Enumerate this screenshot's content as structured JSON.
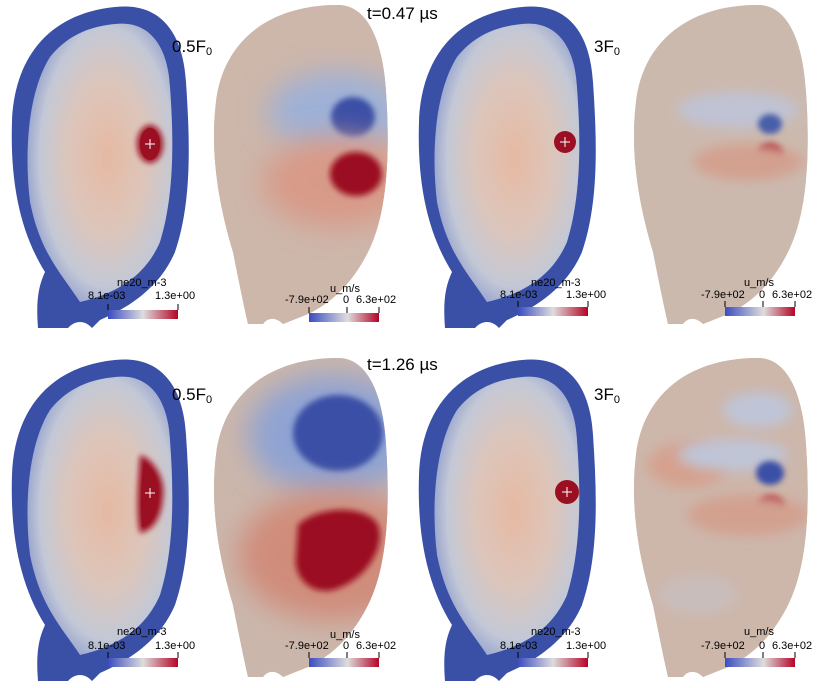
{
  "figure": {
    "rows": [
      {
        "time": "t=0.47 µs",
        "panels": [
          {
            "case_main": "0.5F",
            "case_sub": "0",
            "field": "density",
            "colorbar": {
              "title": "ne20_m-3",
              "min": "8.1e-03",
              "max": "1.3e+00"
            }
          },
          {
            "field": "velocity",
            "colorbar": {
              "title": "u_m/s",
              "min": "-7.9e+02",
              "mid": "0",
              "max": "6.3e+02"
            }
          },
          {
            "case_main": "3F",
            "case_sub": "0",
            "field": "density",
            "colorbar": {
              "title": "ne20_m-3",
              "min": "8.1e-03",
              "max": "1.3e+00"
            }
          },
          {
            "field": "velocity",
            "colorbar": {
              "title": "u_m/s",
              "min": "-7.9e+02",
              "mid": "0",
              "max": "6.3e+02"
            }
          }
        ]
      },
      {
        "time": "t=1.26 µs",
        "panels": [
          {
            "case_main": "0.5F",
            "case_sub": "0",
            "field": "density",
            "colorbar": {
              "title": "ne20_m-3",
              "min": "8.1e-03",
              "max": "1.3e+00"
            }
          },
          {
            "field": "velocity",
            "colorbar": {
              "title": "u_m/s",
              "min": "-7.9e+02",
              "mid": "0",
              "max": "6.3e+02"
            }
          },
          {
            "case_main": "3F",
            "case_sub": "0",
            "field": "density",
            "colorbar": {
              "title": "ne20_m-3",
              "min": "8.1e-03",
              "max": "1.3e+00"
            }
          },
          {
            "field": "velocity",
            "colorbar": {
              "title": "u_m/s",
              "min": "-7.9e+02",
              "mid": "0",
              "max": "6.3e+02"
            }
          }
        ]
      }
    ],
    "colors": {
      "edge_blue": "#3a4fa6",
      "core_peach": "#e3b9a4",
      "mid_grey": "#c9c9cb",
      "pellet_red": "#9b0f22",
      "velocity_bg": "#d0b4a6",
      "neg_blue": "#3b4fa6",
      "pos_red": "#a51526"
    }
  }
}
